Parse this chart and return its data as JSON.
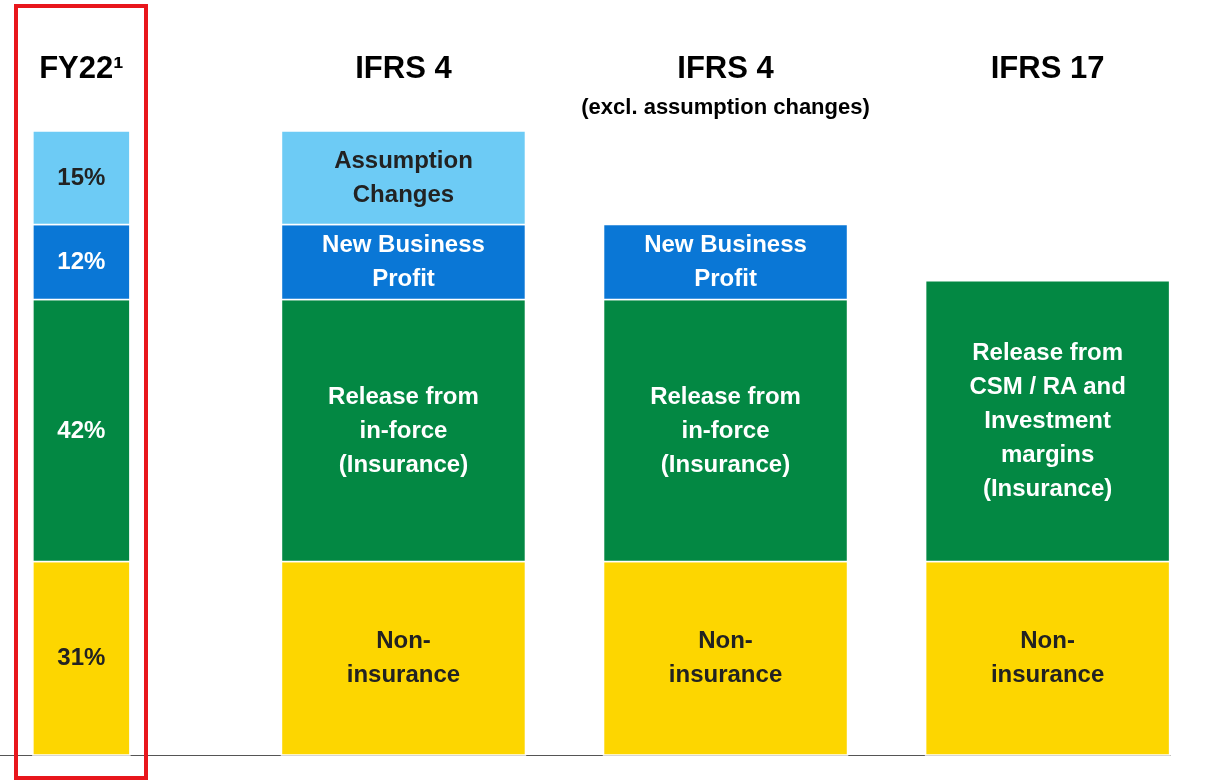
{
  "chart_data": {
    "type": "bar",
    "stacked": true,
    "categories": [
      "FY22¹",
      "IFRS 4",
      "IFRS 4\n(excl. assumption changes)",
      "IFRS 17"
    ],
    "series": [
      {
        "color": "#fdd600",
        "values": [
          31,
          31,
          31,
          31
        ],
        "value_labels": [
          "31%",
          "Non-\ninsurance",
          "Non-\ninsurance",
          "Non-\ninsurance"
        ]
      },
      {
        "color": "#038843",
        "values": [
          42,
          42,
          42,
          45
        ],
        "value_labels": [
          "42%",
          "Release from\nin-force\n(Insurance)",
          "Release from\nin-force\n(Insurance)",
          "Release from\nCSM / RA and\nInvestment\nmargins\n(Insurance)"
        ]
      },
      {
        "color": "#0a77d6",
        "values": [
          12,
          12,
          12,
          null
        ],
        "value_labels": [
          "12%",
          "New Business\nProfit",
          "New Business\nProfit",
          null
        ]
      },
      {
        "color": "#6dcbf5",
        "values": [
          15,
          15,
          null,
          null
        ],
        "value_labels": [
          "15%",
          "Assumption\nChanges",
          null,
          null
        ]
      }
    ]
  }
}
